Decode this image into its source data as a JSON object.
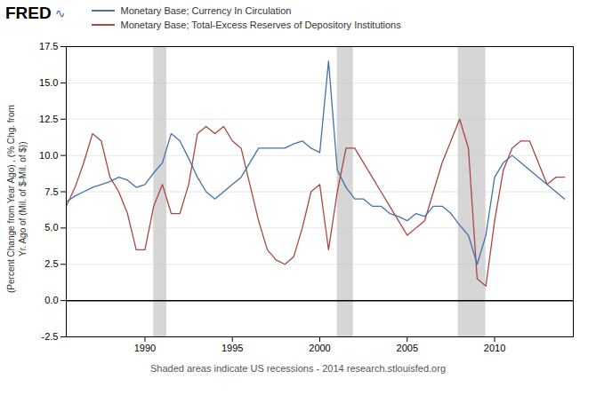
{
  "chart_data": {
    "type": "line",
    "title": "FRED",
    "annotations": [
      "∿"
    ],
    "caption": "Shaded areas indicate US recessions - 2014 research.stlouisfed.org",
    "ylabel": "(Percent Change from Year Ago) , (% Chg. from\nYr. Ago of (Mil. of $-Mil. of $))",
    "legend": "top",
    "grid": true,
    "xlim": [
      1985.5,
      2014.5
    ],
    "xticks": [
      1990,
      1995,
      2000,
      2005,
      2010
    ],
    "ylim": [
      -2.5,
      17.5
    ],
    "yticks": [
      -2.5,
      {
        "value": 0,
        "label": "0.0"
      },
      2.5,
      {
        "value": 5,
        "label": "5.0"
      },
      7.5,
      {
        "value": 10,
        "label": "10.0"
      },
      12.5,
      {
        "value": 15,
        "label": "15.0"
      },
      17.5
    ],
    "bands": [
      {
        "start": 1990.5,
        "end": 1991.25,
        "color": "#c8c8c8"
      },
      {
        "start": 2001.0,
        "end": 2001.92,
        "color": "#c8c8c8"
      },
      {
        "start": 2007.92,
        "end": 2009.5,
        "color": "#c8c8c8"
      }
    ],
    "reference_lines": [
      {
        "y": 0,
        "color": "black"
      }
    ],
    "x": [
      1985.5,
      1986.0,
      1986.5,
      1987.0,
      1987.5,
      1988.0,
      1988.5,
      1989.0,
      1989.5,
      1990.0,
      1990.5,
      1991.0,
      1991.5,
      1992.0,
      1992.5,
      1993.0,
      1993.5,
      1994.0,
      1994.5,
      1995.0,
      1995.5,
      1996.0,
      1996.5,
      1997.0,
      1997.5,
      1998.0,
      1998.5,
      1999.0,
      1999.5,
      2000.0,
      2000.5,
      2001.0,
      2001.5,
      2002.0,
      2002.5,
      2003.0,
      2003.5,
      2004.0,
      2004.5,
      2005.0,
      2005.5,
      2006.0,
      2006.5,
      2007.0,
      2007.5,
      2008.0,
      2008.5,
      2009.0,
      2009.5,
      2010.0,
      2010.5,
      2011.0,
      2011.5,
      2012.0,
      2012.5,
      2013.0,
      2013.5,
      2014.0
    ],
    "series": [
      {
        "name": "Monetary Base; Currency In Circulation",
        "color": "#4572a7",
        "values": [
          6.8,
          7.2,
          7.5,
          7.8,
          8.0,
          8.2,
          8.5,
          8.3,
          7.8,
          8.0,
          8.8,
          9.5,
          11.5,
          11.0,
          9.8,
          8.5,
          7.5,
          7.0,
          7.5,
          8.0,
          8.5,
          9.5,
          10.5,
          10.5,
          10.5,
          10.5,
          10.8,
          11.0,
          10.5,
          10.2,
          16.5,
          9.0,
          7.8,
          7.0,
          7.0,
          6.5,
          6.5,
          6.0,
          5.8,
          5.5,
          6.0,
          5.8,
          6.5,
          6.5,
          6.0,
          5.2,
          4.5,
          2.5,
          4.5,
          8.5,
          9.5,
          10.0,
          9.5,
          9.0,
          8.5,
          8.0,
          7.5,
          7.0
        ]
      },
      {
        "name": "Monetary Base; Total-Excess Reserves of Depository Institutions",
        "color": "#aa4643",
        "values": [
          6.5,
          7.8,
          9.5,
          11.5,
          11.0,
          8.5,
          7.5,
          6.0,
          3.5,
          3.5,
          6.5,
          8.0,
          6.0,
          6.0,
          8.0,
          11.5,
          12.0,
          11.5,
          12.0,
          11.0,
          10.5,
          8.0,
          5.5,
          3.5,
          2.8,
          2.5,
          3.0,
          5.0,
          7.5,
          8.0,
          3.5,
          7.5,
          10.5,
          10.5,
          9.5,
          8.5,
          7.5,
          6.5,
          5.5,
          4.5,
          5.0,
          5.5,
          7.5,
          9.5,
          11.0,
          12.5,
          10.5,
          1.5,
          1.0,
          5.5,
          9.0,
          10.5,
          11.0,
          11.0,
          9.5,
          8.0,
          8.5,
          8.5
        ]
      }
    ]
  }
}
